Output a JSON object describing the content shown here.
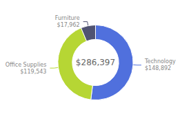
{
  "chart_data": {
    "type": "pie",
    "categories": [
      "Technology",
      "Office Supplies",
      "Furniture"
    ],
    "values": [
      148892,
      119543,
      17962
    ],
    "value_labels": [
      "$148,892",
      "$119,543",
      "$17,962"
    ],
    "data_labels": true,
    "annotations": [
      "$286,397"
    ]
  }
}
